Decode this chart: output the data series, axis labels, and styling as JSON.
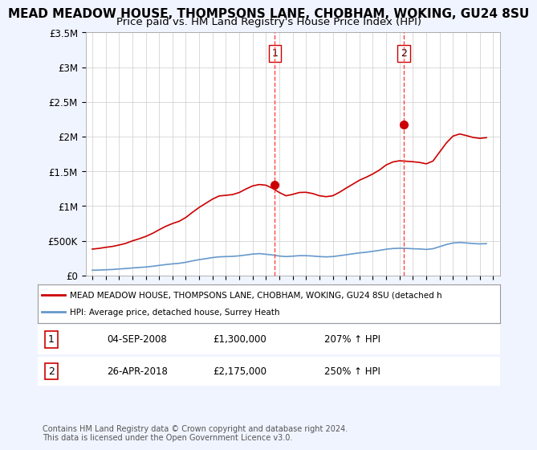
{
  "title": "MEAD MEADOW HOUSE, THOMPSONS LANE, CHOBHAM, WOKING, GU24 8SU",
  "subtitle": "Price paid vs. HM Land Registry's House Price Index (HPI)",
  "title_fontsize": 11,
  "subtitle_fontsize": 9.5,
  "ylim": [
    0,
    3500000
  ],
  "yticks": [
    0,
    500000,
    1000000,
    1500000,
    2000000,
    2500000,
    3000000,
    3500000
  ],
  "ytick_labels": [
    "£0",
    "£500K",
    "£1M",
    "£1.5M",
    "£2M",
    "£2.5M",
    "£3M",
    "£3.5M"
  ],
  "xlim_start": 1994.5,
  "xlim_end": 2025.5,
  "background_color": "#f0f4ff",
  "plot_bg_color": "#ffffff",
  "grid_color": "#cccccc",
  "line1_color": "#cc0000",
  "line2_color": "#6699cc",
  "marker1_date_x": 2008.67,
  "marker1_y": 1300000,
  "marker1_label": "1",
  "marker2_date_x": 2018.32,
  "marker2_y": 2175000,
  "marker2_label": "2",
  "vline_color": "#ff4444",
  "legend_line1": "MEAD MEADOW HOUSE, THOMPSONS LANE, CHOBHAM, WOKING, GU24 8SU (detached h",
  "legend_line2": "HPI: Average price, detached house, Surrey Heath",
  "table_row1_num": "1",
  "table_row1_date": "04-SEP-2008",
  "table_row1_price": "£1,300,000",
  "table_row1_hpi": "207% ↑ HPI",
  "table_row2_num": "2",
  "table_row2_date": "26-APR-2018",
  "table_row2_price": "£2,175,000",
  "table_row2_hpi": "250% ↑ HPI",
  "footer": "Contains HM Land Registry data © Crown copyright and database right 2024.\nThis data is licensed under the Open Government Licence v3.0.",
  "hpi_x": [
    1995,
    1995.5,
    1996,
    1996.5,
    1997,
    1997.5,
    1998,
    1998.5,
    1999,
    1999.5,
    2000,
    2000.5,
    2001,
    2001.5,
    2002,
    2002.5,
    2003,
    2003.5,
    2004,
    2004.5,
    2005,
    2005.5,
    2006,
    2006.5,
    2007,
    2007.5,
    2008,
    2008.5,
    2009,
    2009.5,
    2010,
    2010.5,
    2011,
    2011.5,
    2012,
    2012.5,
    2013,
    2013.5,
    2014,
    2014.5,
    2015,
    2015.5,
    2016,
    2016.5,
    2017,
    2017.5,
    2018,
    2018.5,
    2019,
    2019.5,
    2020,
    2020.5,
    2021,
    2021.5,
    2022,
    2022.5,
    2023,
    2023.5,
    2024,
    2024.5
  ],
  "hpi_y": [
    75000,
    78000,
    82000,
    86000,
    93000,
    100000,
    108000,
    115000,
    122000,
    132000,
    145000,
    157000,
    167000,
    175000,
    190000,
    210000,
    228000,
    242000,
    258000,
    268000,
    272000,
    275000,
    283000,
    295000,
    308000,
    315000,
    305000,
    295000,
    280000,
    272000,
    278000,
    285000,
    285000,
    280000,
    272000,
    268000,
    272000,
    285000,
    298000,
    312000,
    325000,
    335000,
    348000,
    362000,
    378000,
    388000,
    392000,
    390000,
    385000,
    382000,
    375000,
    385000,
    415000,
    445000,
    468000,
    475000,
    468000,
    460000,
    455000,
    458000
  ],
  "red_x": [
    1995,
    1995.5,
    1996,
    1996.5,
    1997,
    1997.5,
    1998,
    1998.5,
    1999,
    1999.5,
    2000,
    2000.5,
    2001,
    2001.5,
    2002,
    2002.5,
    2003,
    2003.5,
    2004,
    2004.5,
    2005,
    2005.5,
    2006,
    2006.5,
    2007,
    2007.5,
    2008,
    2008.5,
    2009,
    2009.5,
    2010,
    2010.5,
    2011,
    2011.5,
    2012,
    2012.5,
    2013,
    2013.5,
    2014,
    2014.5,
    2015,
    2015.5,
    2016,
    2016.5,
    2017,
    2017.5,
    2018,
    2018.5,
    2019,
    2019.5,
    2020,
    2020.5,
    2021,
    2021.5,
    2022,
    2022.5,
    2023,
    2023.5,
    2024,
    2024.5
  ],
  "red_y": [
    380000,
    390000,
    405000,
    418000,
    438000,
    462000,
    498000,
    528000,
    562000,
    605000,
    658000,
    708000,
    748000,
    780000,
    835000,
    910000,
    980000,
    1040000,
    1100000,
    1145000,
    1155000,
    1165000,
    1195000,
    1245000,
    1290000,
    1310000,
    1300000,
    1255000,
    1195000,
    1148000,
    1168000,
    1195000,
    1198000,
    1180000,
    1148000,
    1135000,
    1148000,
    1198000,
    1258000,
    1315000,
    1372000,
    1415000,
    1462000,
    1520000,
    1592000,
    1635000,
    1652000,
    1645000,
    1638000,
    1628000,
    1608000,
    1648000,
    1778000,
    1908000,
    2008000,
    2038000,
    2015000,
    1988000,
    1975000,
    1985000
  ]
}
